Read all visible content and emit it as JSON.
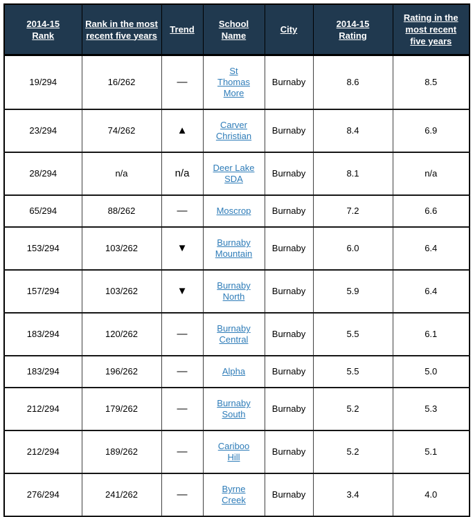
{
  "table": {
    "columns": [
      "2014-15 Rank",
      "Rank in the most recent five years",
      "Trend",
      "School Name",
      "City",
      "2014-15 Rating",
      "Rating in the most recent five years"
    ],
    "rows": [
      {
        "rank": "19/294",
        "rank_recent": "16/262",
        "trend": "—",
        "school": "St Thomas More",
        "city": "Burnaby",
        "rating": "8.6",
        "rating_recent": "8.5"
      },
      {
        "rank": "23/294",
        "rank_recent": "74/262",
        "trend": "▲",
        "school": "Carver Christian",
        "city": "Burnaby",
        "rating": "8.4",
        "rating_recent": "6.9"
      },
      {
        "rank": "28/294",
        "rank_recent": "n/a",
        "trend": "n/a",
        "school": "Deer Lake SDA",
        "city": "Burnaby",
        "rating": "8.1",
        "rating_recent": "n/a"
      },
      {
        "rank": "65/294",
        "rank_recent": "88/262",
        "trend": "—",
        "school": "Moscrop",
        "city": "Burnaby",
        "rating": "7.2",
        "rating_recent": "6.6"
      },
      {
        "rank": "153/294",
        "rank_recent": "103/262",
        "trend": "▼",
        "school": "Burnaby Mountain",
        "city": "Burnaby",
        "rating": "6.0",
        "rating_recent": "6.4"
      },
      {
        "rank": "157/294",
        "rank_recent": "103/262",
        "trend": "▼",
        "school": "Burnaby North",
        "city": "Burnaby",
        "rating": "5.9",
        "rating_recent": "6.4"
      },
      {
        "rank": "183/294",
        "rank_recent": "120/262",
        "trend": "—",
        "school": "Burnaby Central",
        "city": "Burnaby",
        "rating": "5.5",
        "rating_recent": "6.1"
      },
      {
        "rank": "183/294",
        "rank_recent": "196/262",
        "trend": "—",
        "school": "Alpha",
        "city": "Burnaby",
        "rating": "5.5",
        "rating_recent": "5.0"
      },
      {
        "rank": "212/294",
        "rank_recent": "179/262",
        "trend": "—",
        "school": "Burnaby South",
        "city": "Burnaby",
        "rating": "5.2",
        "rating_recent": "5.3"
      },
      {
        "rank": "212/294",
        "rank_recent": "189/262",
        "trend": "—",
        "school": "Cariboo Hill",
        "city": "Burnaby",
        "rating": "5.2",
        "rating_recent": "5.1"
      },
      {
        "rank": "276/294",
        "rank_recent": "241/262",
        "trend": "—",
        "school": "Byrne Creek",
        "city": "Burnaby",
        "rating": "3.4",
        "rating_recent": "4.0"
      }
    ]
  },
  "colors": {
    "header_bg": "#20394f",
    "header_text": "#ffffff",
    "link": "#2e7cb8",
    "trend_symbol": "#000000"
  }
}
